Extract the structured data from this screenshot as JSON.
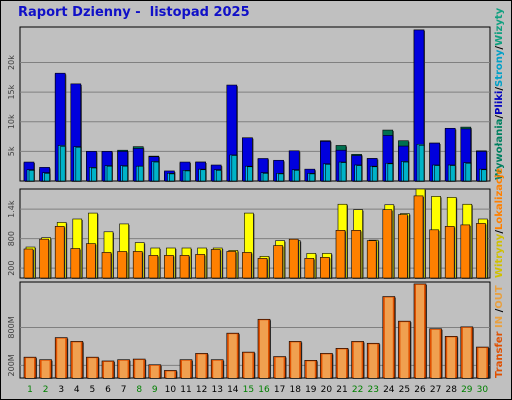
{
  "title": "Raport Dzienny -  listopad 2025",
  "colors": {
    "background": "#c0c0c0",
    "plot": "#c0c0c0",
    "grid": "#808080",
    "visits": "#00b3c8",
    "visits_label": "#10a080",
    "pages": "#00b3ff",
    "pages_label": "#00a0c8",
    "files": "#0000dd",
    "files_label": "#0000c0",
    "hits": "#007050",
    "hits_label": "#008060",
    "sites": "#ff8000",
    "sites_label": "#ff8000",
    "kbytes": "#ffff00",
    "kbytes_label": "#d0c000",
    "transfer": "#e05000",
    "in_out_label": "#e8a040",
    "weekday": "#008000",
    "weekend": "#006040"
  },
  "right_labels": {
    "top": [
      "Wywołania",
      "/",
      "Pliki",
      "/",
      "Strony",
      "/",
      "Wizyty"
    ],
    "middle": [
      "Witryny",
      "/",
      "Lokalizacje"
    ],
    "bottom": [
      "Transfer",
      " IN ",
      "/",
      "OUT"
    ]
  },
  "chart_data": [
    {
      "type": "bar",
      "panel": "top",
      "y_ticks": [
        "5k",
        "10k",
        "15k",
        "20k"
      ],
      "y_tick_values": [
        5000,
        10000,
        15000,
        20000
      ],
      "ylim": [
        0,
        26000
      ],
      "grid": true,
      "categories": [
        "1",
        "2",
        "3",
        "4",
        "5",
        "6",
        "7",
        "8",
        "9",
        "10",
        "11",
        "12",
        "13",
        "14",
        "15",
        "16",
        "17",
        "18",
        "19",
        "20",
        "21",
        "22",
        "23",
        "24",
        "25",
        "26",
        "27",
        "28",
        "29",
        "30"
      ],
      "series": [
        {
          "name": "Wywołania",
          "values": [
            3000,
            2000,
            18000,
            16000,
            5000,
            5000,
            5200,
            5800,
            4200,
            1500,
            3000,
            3200,
            2600,
            16000,
            7300,
            3700,
            3400,
            5100,
            1900,
            6800,
            6000,
            4500,
            3800,
            8600,
            6800,
            25500,
            6400,
            8800,
            9100,
            5100
          ]
        },
        {
          "name": "Pliki",
          "values": [
            3200,
            2300,
            18200,
            16400,
            5000,
            5000,
            5000,
            5500,
            4100,
            1700,
            3200,
            3200,
            2700,
            16200,
            7300,
            3800,
            3500,
            5100,
            2000,
            6700,
            5200,
            4300,
            3800,
            7700,
            5900,
            25500,
            6400,
            8900,
            8800,
            5000
          ]
        },
        {
          "name": "Strony",
          "values": [
            1900,
            1400,
            6000,
            5800,
            2300,
            2600,
            2600,
            2500,
            3300,
            1300,
            1800,
            2000,
            1900,
            4400,
            2500,
            1400,
            1300,
            1900,
            1300,
            2900,
            3200,
            2700,
            2500,
            3000,
            3300,
            6200,
            2700,
            2700,
            3100,
            2000
          ]
        },
        {
          "name": "Wizyty",
          "values": [
            1800,
            1300,
            5800,
            5700,
            2200,
            2500,
            2500,
            2500,
            3200,
            1200,
            1700,
            1900,
            1800,
            4300,
            2400,
            1300,
            1200,
            1800,
            1200,
            2800,
            3100,
            2600,
            2400,
            2900,
            3200,
            6000,
            2600,
            2600,
            3000,
            1900
          ]
        }
      ]
    },
    {
      "type": "bar",
      "panel": "middle",
      "y_ticks": [
        "200",
        "800",
        "1.4k"
      ],
      "y_tick_values": [
        200,
        800,
        1400
      ],
      "ylim": [
        0,
        1810
      ],
      "grid": true,
      "categories": [
        "1",
        "2",
        "3",
        "4",
        "5",
        "6",
        "7",
        "8",
        "9",
        "10",
        "11",
        "12",
        "13",
        "14",
        "15",
        "16",
        "17",
        "18",
        "19",
        "20",
        "21",
        "22",
        "23",
        "24",
        "25",
        "26",
        "27",
        "28",
        "29",
        "30"
      ],
      "series": [
        {
          "name": "Witryny",
          "values": [
            630,
            820,
            1130,
            1200,
            1320,
            940,
            1100,
            720,
            610,
            610,
            610,
            610,
            610,
            560,
            1320,
            440,
            760,
            760,
            500,
            500,
            1500,
            1390,
            770,
            1490,
            1310,
            1810,
            1660,
            1640,
            1500,
            1200
          ]
        },
        {
          "name": "Lokalizacje",
          "values": [
            590,
            790,
            1050,
            600,
            700,
            520,
            540,
            540,
            460,
            460,
            460,
            480,
            580,
            540,
            520,
            400,
            660,
            790,
            400,
            420,
            970,
            970,
            760,
            1390,
            1290,
            1670,
            980,
            1050,
            1080,
            1110
          ]
        }
      ]
    },
    {
      "type": "bar",
      "panel": "bottom",
      "y_ticks": [
        "200M",
        "800M"
      ],
      "y_tick_values": [
        200,
        800
      ],
      "ylim": [
        0,
        1520
      ],
      "grid": true,
      "categories": [
        "1",
        "2",
        "3",
        "4",
        "5",
        "6",
        "7",
        "8",
        "9",
        "10",
        "11",
        "12",
        "13",
        "14",
        "15",
        "16",
        "17",
        "18",
        "19",
        "20",
        "21",
        "22",
        "23",
        "24",
        "25",
        "26",
        "27",
        "28",
        "29",
        "30"
      ],
      "series": [
        {
          "name": "Transfer",
          "values": [
            330,
            290,
            640,
            580,
            330,
            270,
            290,
            300,
            210,
            120,
            290,
            390,
            290,
            710,
            410,
            930,
            340,
            580,
            280,
            390,
            470,
            580,
            550,
            1290,
            900,
            1490,
            780,
            660,
            810,
            490
          ]
        }
      ]
    }
  ],
  "x_labels": {
    "values": [
      "1",
      "2",
      "3",
      "4",
      "5",
      "6",
      "7",
      "8",
      "9",
      "10",
      "11",
      "12",
      "13",
      "14",
      "15",
      "16",
      "17",
      "18",
      "19",
      "20",
      "21",
      "22",
      "23",
      "24",
      "25",
      "26",
      "27",
      "28",
      "29",
      "30"
    ],
    "weekend": [
      "1",
      "2",
      "8",
      "9",
      "15",
      "16",
      "22",
      "23",
      "29",
      "30"
    ]
  }
}
